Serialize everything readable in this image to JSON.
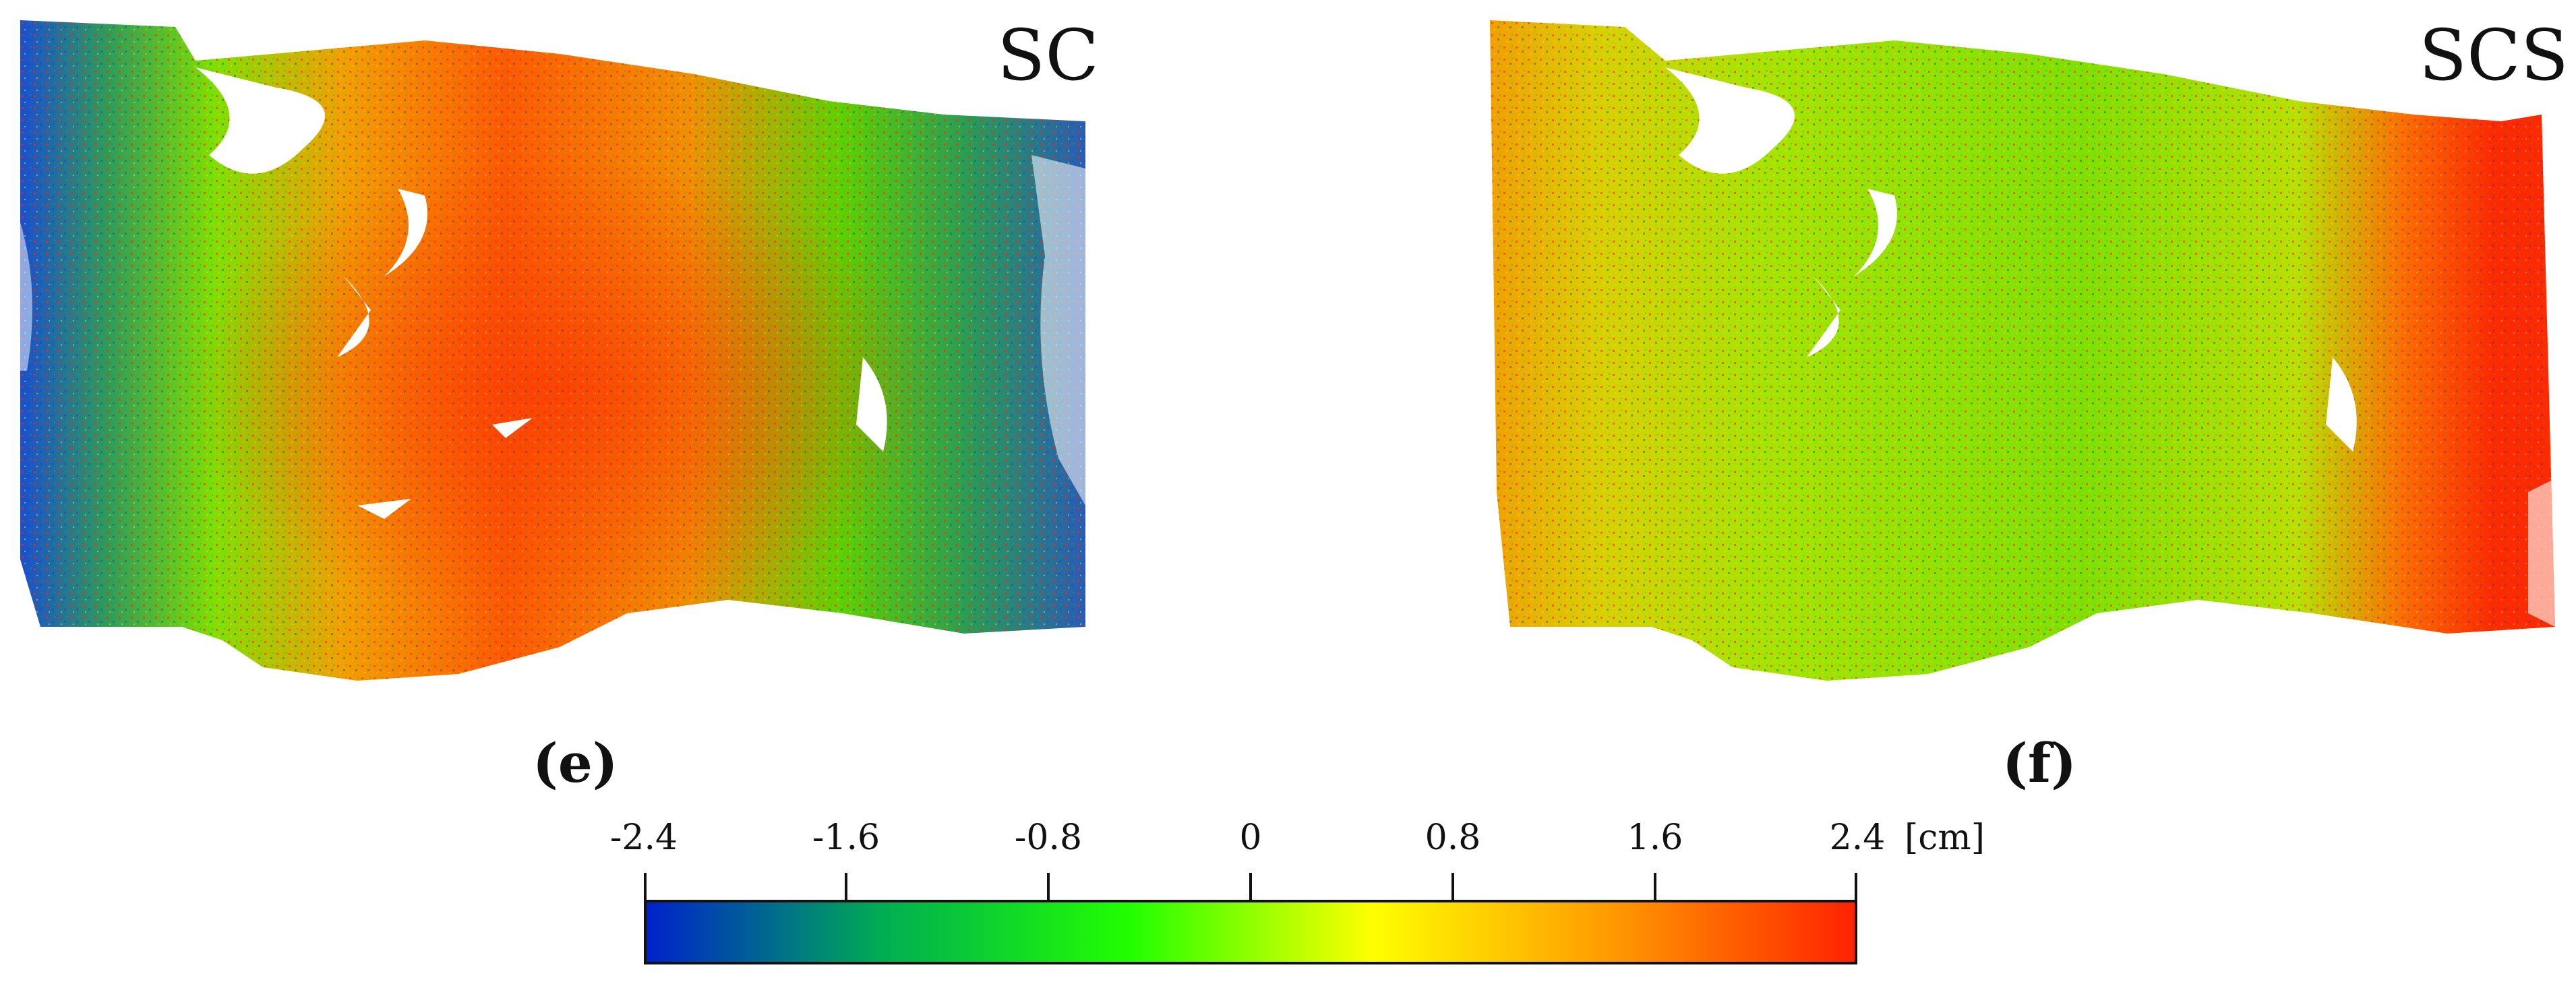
{
  "panels": [
    {
      "id": "e",
      "title": "SC",
      "label": "(e)"
    },
    {
      "id": "f",
      "title": "SCS",
      "label": "(f)"
    }
  ],
  "colorbar": {
    "ticks": [
      "-2.4",
      "-1.6",
      "-0.8",
      "0",
      "0.8",
      "1.6",
      "2.4"
    ],
    "unit": "[cm]",
    "range": [
      -2.4,
      2.4
    ],
    "gradient_colors": [
      "#0022cc",
      "#00b050",
      "#22ff00",
      "#ffff00",
      "#ff9900",
      "#ff2200"
    ]
  }
}
